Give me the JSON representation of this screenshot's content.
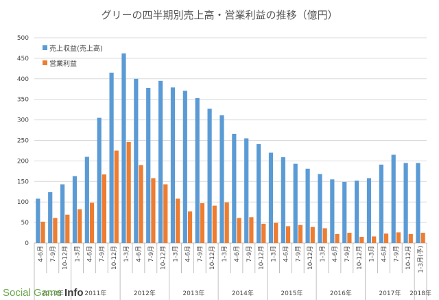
{
  "watermark": {
    "text": "Social Game",
    "strong": "Info"
  },
  "chart_data": {
    "type": "bar",
    "title": "グリーの四半期別売上高・営業利益の推移（億円）",
    "xlabel": "",
    "ylabel": "",
    "ylim": [
      0,
      500
    ],
    "yticks": [
      0,
      50,
      100,
      150,
      200,
      250,
      300,
      350,
      400,
      450,
      500
    ],
    "grid": true,
    "legend_position": "top-left",
    "categories": [
      "4-6月",
      "7-9月",
      "10-12月",
      "1-3月",
      "4-6月",
      "7-9月",
      "10-12月",
      "1-3月",
      "4-6月",
      "7-9月",
      "10-12月",
      "1-3月",
      "4-6月",
      "7-9月",
      "10-12月",
      "1-3月",
      "4-6月",
      "7-9月",
      "10-12月",
      "1-3月",
      "4-6月",
      "7-9月",
      "10-12月",
      "1-3月",
      "4-6月",
      "7-9月",
      "10-12月",
      "1-3月",
      "4-6月",
      "7-9月",
      "10-12月",
      "1-3月(予)"
    ],
    "year_groups": [
      {
        "label": "2010年",
        "start": 0,
        "count": 3
      },
      {
        "label": "2011年",
        "start": 3,
        "count": 4
      },
      {
        "label": "2012年",
        "start": 7,
        "count": 4
      },
      {
        "label": "2013年",
        "start": 11,
        "count": 4
      },
      {
        "label": "2014年",
        "start": 15,
        "count": 4
      },
      {
        "label": "2015年",
        "start": 19,
        "count": 4
      },
      {
        "label": "2016年",
        "start": 23,
        "count": 4
      },
      {
        "label": "2017年",
        "start": 27,
        "count": 4
      },
      {
        "label": "2018年",
        "start": 31,
        "count": 1
      }
    ],
    "series": [
      {
        "name": "売上収益(売上高)",
        "color": "#5b9bd5",
        "values": [
          108,
          124,
          143,
          163,
          210,
          305,
          415,
          462,
          400,
          378,
          395,
          379,
          371,
          353,
          327,
          311,
          266,
          255,
          241,
          220,
          209,
          193,
          181,
          168,
          155,
          149,
          152,
          158,
          191,
          215,
          195,
          195
        ]
      },
      {
        "name": "営業利益",
        "color": "#ed7d31",
        "values": [
          52,
          61,
          69,
          82,
          98,
          167,
          225,
          246,
          190,
          158,
          143,
          108,
          77,
          97,
          91,
          99,
          61,
          63,
          47,
          49,
          41,
          44,
          39,
          36,
          22,
          25,
          15,
          16,
          23,
          26,
          22,
          25
        ]
      }
    ]
  }
}
